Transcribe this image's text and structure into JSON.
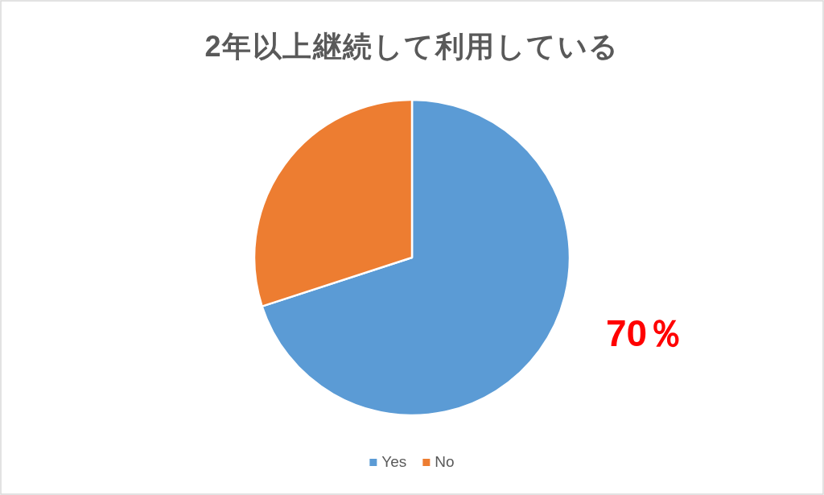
{
  "chart_data": {
    "type": "pie",
    "title": "2年以上継続して利用している",
    "categories": [
      "Yes",
      "No"
    ],
    "values": [
      70,
      30
    ],
    "colors": [
      "#5b9bd5",
      "#ed7d31"
    ],
    "value_labels": [
      "70％",
      null
    ],
    "legend": "bottom"
  }
}
